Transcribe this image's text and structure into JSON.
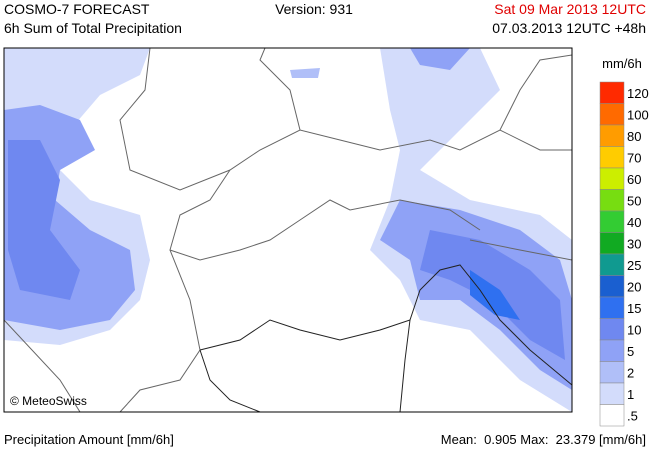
{
  "header": {
    "model": "COSMO-7 FORECAST",
    "product": "6h Sum of Total Precipitation",
    "version": "Version: 931",
    "valid_time": "Sat 09 Mar 2013 12UTC",
    "run_time": "07.03.2013 12UTC +48h"
  },
  "map": {
    "copyright": "© MeteoSwiss"
  },
  "legend": {
    "unit": "mm/6h",
    "levels": [
      {
        "label": "120",
        "color": "#ff2a00"
      },
      {
        "label": "100",
        "color": "#ff6a00"
      },
      {
        "label": "80",
        "color": "#ff9c00"
      },
      {
        "label": "70",
        "color": "#ffcc00"
      },
      {
        "label": "60",
        "color": "#ccee00"
      },
      {
        "label": "50",
        "color": "#77dd11"
      },
      {
        "label": "40",
        "color": "#33cc33"
      },
      {
        "label": "30",
        "color": "#11aa22"
      },
      {
        "label": "25",
        "color": "#109a90"
      },
      {
        "label": "20",
        "color": "#1a5fd0"
      },
      {
        "label": "15",
        "color": "#2f70f0"
      },
      {
        "label": "10",
        "color": "#6f88f0"
      },
      {
        "label": "5",
        "color": "#8fa2f6"
      },
      {
        "label": "2",
        "color": "#b0bff8"
      },
      {
        "label": "1",
        "color": "#d3dcfb"
      },
      {
        "label": ".5",
        "color": "#ffffff"
      }
    ]
  },
  "footer": {
    "parameter": "Precipitation Amount [mm/6h]",
    "stats": "Mean:  0.905 Max:  23.379 [mm/6h]"
  }
}
